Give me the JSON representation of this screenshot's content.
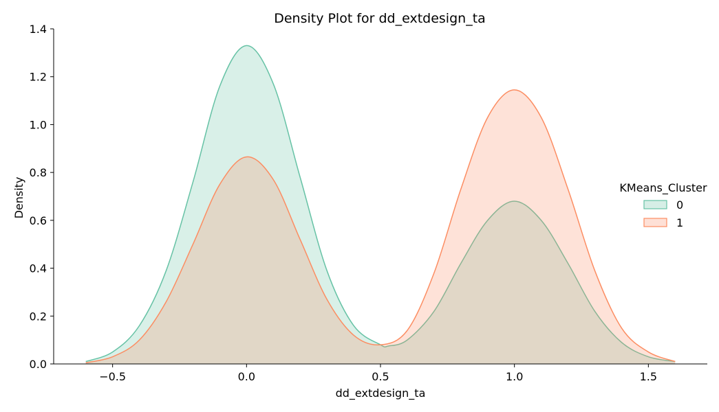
{
  "chart_data": {
    "type": "area",
    "title": "Density Plot for dd_extdesign_ta",
    "xlabel": "dd_extdesign_ta",
    "ylabel": "Density",
    "xlim": [
      -0.72,
      1.72
    ],
    "ylim": [
      0,
      1.4
    ],
    "x_ticks": [
      -0.5,
      0.0,
      0.5,
      1.0,
      1.5
    ],
    "x_tick_labels": [
      "−0.5",
      "0.0",
      "0.5",
      "1.0",
      "1.5"
    ],
    "y_ticks": [
      0.0,
      0.2,
      0.4,
      0.6,
      0.8,
      1.0,
      1.2,
      1.4
    ],
    "y_tick_labels": [
      "0.0",
      "0.2",
      "0.4",
      "0.6",
      "0.8",
      "1.0",
      "1.2",
      "1.4"
    ],
    "grid": false,
    "legend": {
      "title": "KMeans_Cluster",
      "placement": "right"
    },
    "x_range": [
      -0.6,
      1.6
    ],
    "series": [
      {
        "name": "0",
        "color": "#66c2a5",
        "fill": "#d6eee6",
        "x": [
          -0.6,
          -0.5,
          -0.4,
          -0.3,
          -0.2,
          -0.1,
          0.0,
          0.1,
          0.2,
          0.3,
          0.4,
          0.5,
          0.53,
          0.6,
          0.7,
          0.8,
          0.9,
          1.0,
          1.1,
          1.2,
          1.3,
          1.4,
          1.5,
          1.6
        ],
        "y": [
          0.01,
          0.05,
          0.16,
          0.39,
          0.76,
          1.16,
          1.33,
          1.17,
          0.78,
          0.39,
          0.16,
          0.08,
          0.075,
          0.1,
          0.22,
          0.42,
          0.6,
          0.68,
          0.6,
          0.42,
          0.22,
          0.09,
          0.03,
          0.01
        ]
      },
      {
        "name": "1",
        "color": "#fc8d62",
        "fill": "#fee0d6",
        "x": [
          -0.6,
          -0.5,
          -0.4,
          -0.3,
          -0.2,
          -0.1,
          0.0,
          0.1,
          0.2,
          0.3,
          0.4,
          0.5,
          0.6,
          0.7,
          0.8,
          0.9,
          1.0,
          1.1,
          1.2,
          1.3,
          1.4,
          1.5,
          1.6
        ],
        "y": [
          0.005,
          0.03,
          0.1,
          0.26,
          0.5,
          0.75,
          0.865,
          0.77,
          0.52,
          0.27,
          0.12,
          0.08,
          0.14,
          0.38,
          0.73,
          1.03,
          1.145,
          1.03,
          0.73,
          0.39,
          0.15,
          0.05,
          0.01
        ]
      }
    ]
  }
}
